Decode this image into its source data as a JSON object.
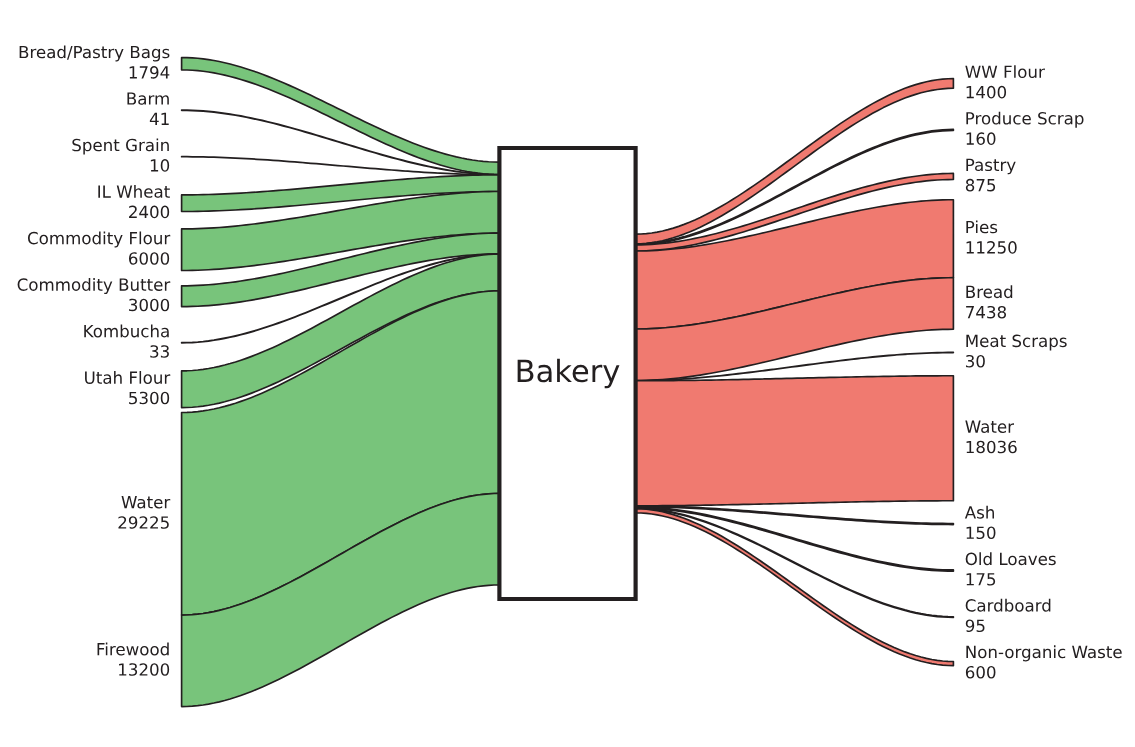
{
  "chart_data": {
    "type": "other",
    "categories": [
      "Bread/Pastry Bags",
      "Barm",
      "Spent Grain",
      "IL Wheat",
      "Commodity Flour",
      "Commodity Butter",
      "Kombucha",
      "Utah Flour",
      "Water",
      "Firewood",
      "WW Flour",
      "Produce Scrap",
      "Pastry",
      "Pies",
      "Bread",
      "Meat Scraps",
      "Water",
      "Ash",
      "Old Loaves",
      "Cardboard",
      "Non-organic Waste"
    ],
    "series": [
      {
        "color": "#78c47b",
        "values": [
          1794,
          41,
          10,
          2400,
          6000,
          3000,
          33,
          5300,
          29225,
          13200,
          null,
          null,
          null,
          null,
          null,
          null,
          null,
          null,
          null,
          null,
          null
        ]
      },
      {
        "color": "#f07a70",
        "values": [
          null,
          null,
          null,
          null,
          null,
          null,
          null,
          null,
          null,
          null,
          1400,
          160,
          875,
          11250,
          7438,
          30,
          18036,
          150,
          175,
          95,
          600
        ]
      }
    ],
    "data_labels": true,
    "annotations": [
      "Bakery"
    ]
  }
}
